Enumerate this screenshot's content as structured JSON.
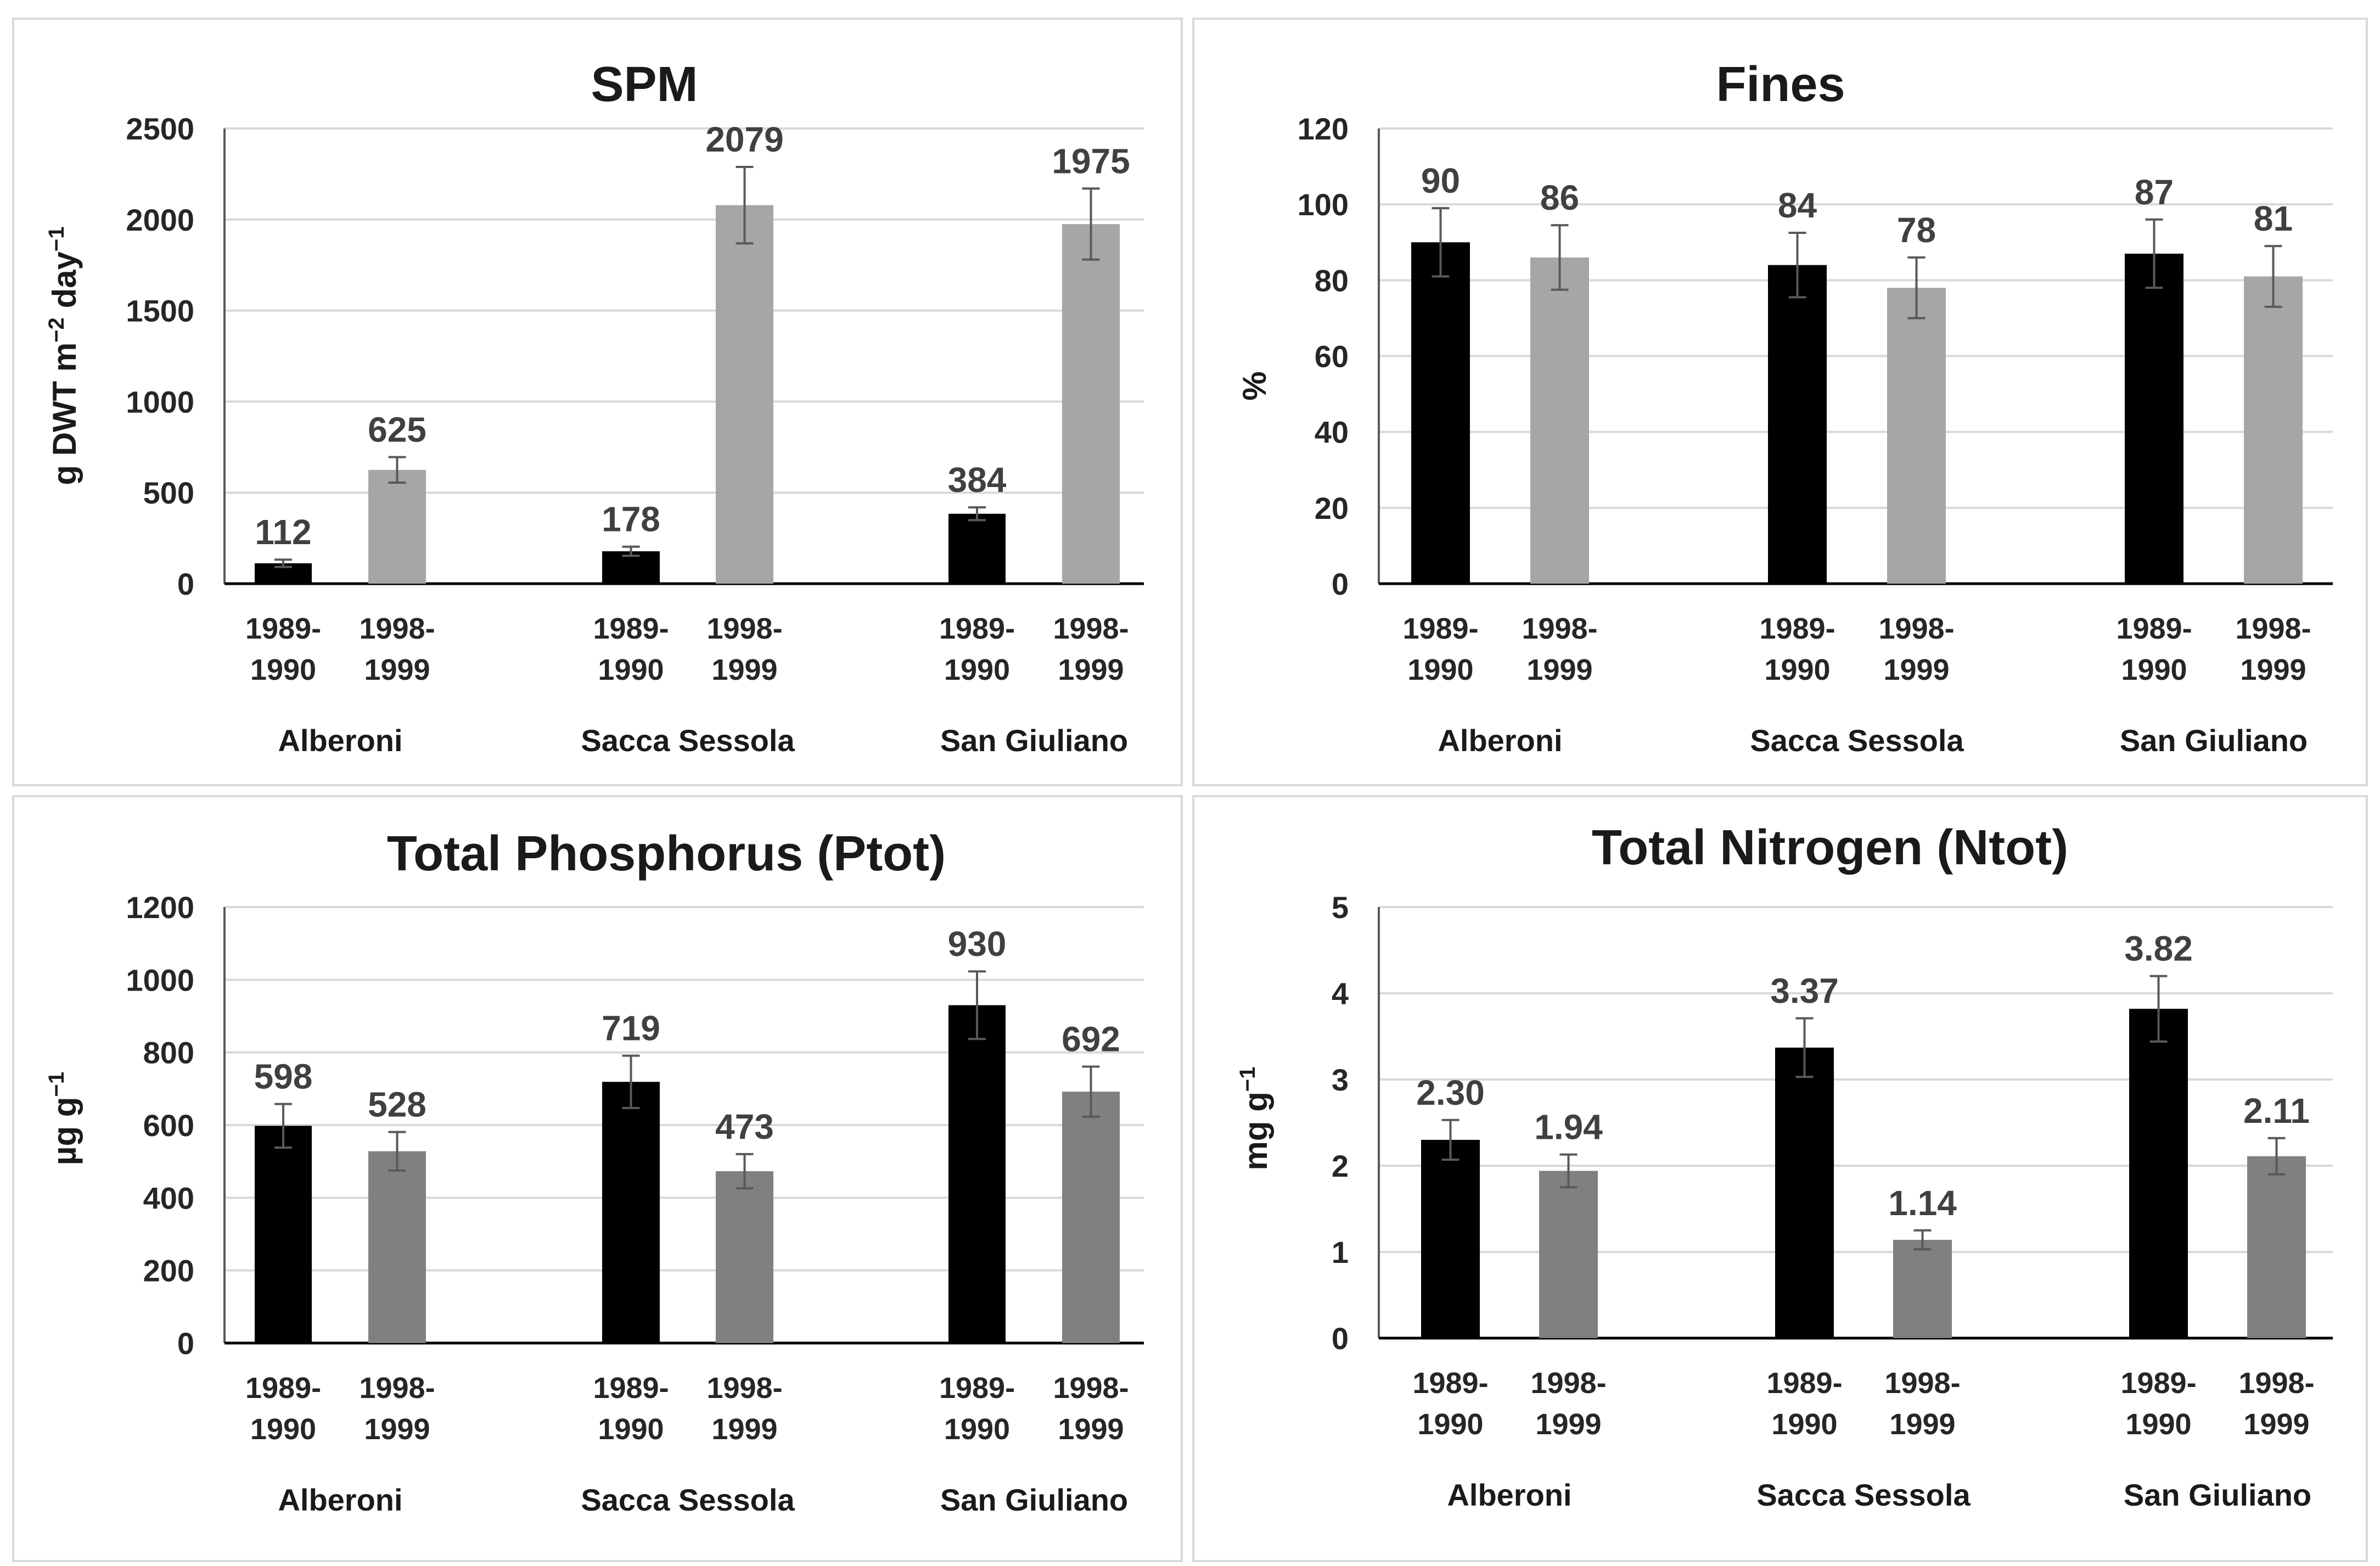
{
  "chart_data": [
    {
      "type": "bar",
      "title": "SPM",
      "ylabel": "g DWT m",
      "ylabel_sup1": "−2",
      "ylabel_mid": " day",
      "ylabel_sup2": "−1",
      "ylim": [
        0,
        2500
      ],
      "yticks": [
        "0",
        "500",
        "1000",
        "1500",
        "2000",
        "2500"
      ],
      "groups": [
        "Alberoni",
        "Sacca Sessola",
        "San Giuliano"
      ],
      "period_labels": [
        [
          "1989-",
          "1990"
        ],
        [
          "1998-",
          "1999"
        ]
      ],
      "series": [
        {
          "name": "1989-1990",
          "color": "#000000",
          "values": [
            112,
            178,
            384
          ],
          "errors": [
            20,
            25,
            35
          ],
          "labels": [
            "112",
            "178",
            "384"
          ]
        },
        {
          "name": "1998-1999",
          "color": "#a6a6a6",
          "values": [
            625,
            2079,
            1975
          ],
          "errors": [
            70,
            210,
            195
          ],
          "labels": [
            "625",
            "2079",
            "1975"
          ]
        }
      ],
      "grid": true
    },
    {
      "type": "bar",
      "title": "Fines",
      "ylabel": "%",
      "ylim": [
        0,
        120
      ],
      "yticks": [
        "0",
        "20",
        "40",
        "60",
        "80",
        "100",
        "120"
      ],
      "groups": [
        "Alberoni",
        "Sacca Sessola",
        "San Giuliano"
      ],
      "period_labels": [
        [
          "1989-",
          "1990"
        ],
        [
          "1998-",
          "1999"
        ]
      ],
      "series": [
        {
          "name": "1989-1990",
          "color": "#000000",
          "values": [
            90,
            84,
            87
          ],
          "errors": [
            9,
            8.5,
            9
          ],
          "labels": [
            "90",
            "84",
            "87"
          ]
        },
        {
          "name": "1998-1999",
          "color": "#a6a6a6",
          "values": [
            86,
            78,
            81
          ],
          "errors": [
            8.5,
            8,
            8
          ],
          "labels": [
            "86",
            "78",
            "81"
          ]
        }
      ],
      "grid": true
    },
    {
      "type": "bar",
      "title": "Total Phosphorus (Ptot)",
      "ylabel": "µg g",
      "ylabel_sup1": "−1",
      "ylim": [
        0,
        1200
      ],
      "yticks": [
        "0",
        "200",
        "400",
        "600",
        "800",
        "1000",
        "1200"
      ],
      "groups": [
        "Alberoni",
        "Sacca Sessola",
        "San Giuliano"
      ],
      "period_labels": [
        [
          "1989-",
          "1990"
        ],
        [
          "1998-",
          "1999"
        ]
      ],
      "series": [
        {
          "name": "1989-1990",
          "color": "#000000",
          "values": [
            598,
            719,
            930
          ],
          "errors": [
            60,
            72,
            93
          ],
          "labels": [
            "598",
            "719",
            "930"
          ]
        },
        {
          "name": "1998-1999",
          "color": "#808080",
          "values": [
            528,
            473,
            692
          ],
          "errors": [
            53,
            47,
            69
          ],
          "labels": [
            "528",
            "473",
            "692"
          ]
        }
      ],
      "grid": true
    },
    {
      "type": "bar",
      "title": "Total Nitrogen (Ntot)",
      "ylabel": "mg g",
      "ylabel_sup1": "−1",
      "ylim": [
        0,
        5
      ],
      "yticks": [
        "0",
        "1",
        "2",
        "3",
        "4",
        "5"
      ],
      "groups": [
        "Alberoni",
        "Sacca Sessola",
        "San Giuliano"
      ],
      "period_labels": [
        [
          "1989-",
          "1990"
        ],
        [
          "1998-",
          "1999"
        ]
      ],
      "series": [
        {
          "name": "1989-1990",
          "color": "#000000",
          "values": [
            2.3,
            3.37,
            3.82
          ],
          "errors": [
            0.23,
            0.34,
            0.38
          ],
          "labels": [
            "2.30",
            "3.37",
            "3.82"
          ]
        },
        {
          "name": "1998-1999",
          "color": "#808080",
          "values": [
            1.94,
            1.14,
            2.11
          ],
          "errors": [
            0.19,
            0.11,
            0.21
          ],
          "labels": [
            "1.94",
            "1.14",
            "2.11"
          ]
        }
      ],
      "grid": true
    }
  ]
}
